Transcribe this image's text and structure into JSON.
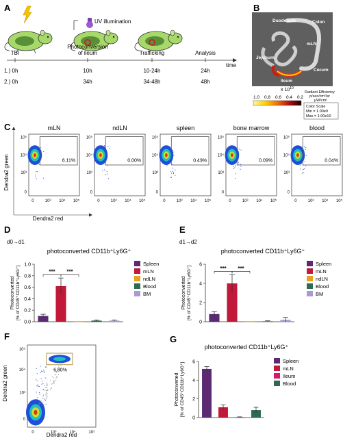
{
  "panels": {
    "A": {
      "letter": "A",
      "uv_label": "UV illumination",
      "timeline_stages": [
        "TBI",
        "Photoconversion\nof ileum",
        "Trafficking",
        "Analysis"
      ],
      "time_axis_label": "time",
      "rows": [
        {
          "label": "1.)",
          "times": [
            "0h",
            "10h",
            "10-24h",
            "24h"
          ]
        },
        {
          "label": "2.)",
          "times": [
            "0h",
            "34h",
            "34-48h",
            "48h"
          ]
        }
      ]
    },
    "B": {
      "letter": "B",
      "organ_labels": [
        "Duodenum",
        "Colon",
        "mLN",
        "Jejunum",
        "Cecum",
        "Ileum"
      ],
      "scale_ticks": [
        "1.0",
        "0.8",
        "0.6",
        "0.4",
        "0.2"
      ],
      "scale_exponent": "x 10",
      "scale_exponent_power": "10",
      "scale_title": "Radiant Efficiency",
      "scale_units_1": "p/sec/cm²/sr",
      "scale_units_2": "μW/cm²",
      "color_scale_title": "Color Scale",
      "color_scale_min": "Min = 1.00e9",
      "color_scale_max": "Max = 1.00e10"
    },
    "C": {
      "letter": "C",
      "ylabel": "Dendra2 green",
      "xlabel": "Dendra2 red",
      "plots": [
        {
          "title": "mLN",
          "percent": "6.11%"
        },
        {
          "title": "ndLN",
          "percent": "0.00%"
        },
        {
          "title": "spleen",
          "percent": "0.49%"
        },
        {
          "title": "bone marrow",
          "percent": "0.09%"
        },
        {
          "title": "blood",
          "percent": "0.04%"
        }
      ],
      "y_ticks": [
        "10⁵",
        "10⁴",
        "10³",
        "0"
      ],
      "x_ticks": [
        "0",
        "10³",
        "10⁴",
        "10⁵"
      ]
    },
    "F": {
      "letter": "F",
      "ylabel": "Dendra2 green",
      "xlabel": "Dendra2 red",
      "percent": "6.80%",
      "y_ticks": [
        "10⁵",
        "10⁴",
        "10³",
        "0"
      ],
      "x_ticks": [
        "0",
        "10³",
        "10⁴",
        "10⁵"
      ]
    }
  },
  "chart_data": [
    {
      "panel": "D",
      "type": "bar",
      "subtitle": "d0→d1",
      "title": "photoconverted CD11b⁺Ly6G⁺",
      "ylabel_1": "Photoconverted",
      "ylabel_2": "[% of CD45⁺CD11b⁺Ly6G⁺]",
      "ylim": [
        0,
        1.0
      ],
      "yticks": [
        0.0,
        0.2,
        0.4,
        0.6,
        0.8,
        1.0
      ],
      "ytick_labels": [
        "0.0",
        "0.2",
        "0.4",
        "0.6",
        "0.8",
        "1.0"
      ],
      "categories": [
        "Spleen",
        "mLN",
        "ndLN",
        "Blood",
        "BM"
      ],
      "values": [
        0.1,
        0.62,
        0.0,
        0.02,
        0.02
      ],
      "errors": [
        0.03,
        0.14,
        0.0,
        0.01,
        0.01
      ],
      "colors": [
        "#5b2a72",
        "#c0193a",
        "#e8a020",
        "#2d6a4f",
        "#a79bd4"
      ],
      "significance": [
        "***",
        "***"
      ],
      "legend_position": "right"
    },
    {
      "panel": "E",
      "type": "bar",
      "subtitle": "d1→d2",
      "title": "photoconverted CD11b⁺Ly6G⁺",
      "ylabel_1": "Photoconverted",
      "ylabel_2": "[% of CD45⁺CD11b⁺Ly6G⁺]",
      "ylim": [
        0,
        6
      ],
      "yticks": [
        0,
        2,
        4,
        6
      ],
      "ytick_labels": [
        "0",
        "2",
        "4",
        "6"
      ],
      "categories": [
        "Spleen",
        "mLN",
        "ndLN",
        "Blood",
        "BM"
      ],
      "values": [
        0.8,
        4.0,
        0.0,
        0.05,
        0.2
      ],
      "errors": [
        0.25,
        0.9,
        0.0,
        0.05,
        0.25
      ],
      "colors": [
        "#5b2a72",
        "#c0193a",
        "#e8a020",
        "#2d6a4f",
        "#a79bd4"
      ],
      "significance": [
        "***",
        "***"
      ],
      "legend_position": "right"
    },
    {
      "panel": "G",
      "type": "bar",
      "title": "photoconverted CD11b⁺Ly6G⁺",
      "ylabel_1": "Photoconverted",
      "ylabel_2": "[% of CD45⁺CD11b⁺Ly6G⁺]",
      "ylim": [
        0,
        6
      ],
      "yticks": [
        0,
        2,
        4,
        6
      ],
      "ytick_labels": [
        "0",
        "2",
        "4",
        "6"
      ],
      "categories": [
        "Spleen",
        "mLN",
        "Ileum",
        "Blood"
      ],
      "values": [
        5.2,
        1.1,
        0.05,
        0.8
      ],
      "errors": [
        0.25,
        0.25,
        0.03,
        0.3
      ],
      "colors": [
        "#5b2a72",
        "#c0193a",
        "#d6186e",
        "#2d6a4f"
      ],
      "legend_position": "right"
    }
  ]
}
